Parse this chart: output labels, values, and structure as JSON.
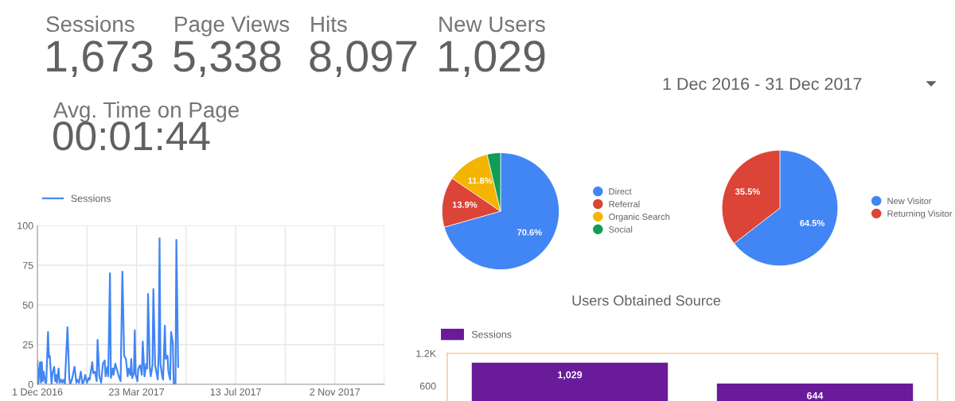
{
  "chart_data": [
    {
      "type": "other",
      "annotations": [
        "Sessions",
        "1,673",
        "Page Views",
        "5,338",
        "Hits",
        "8,097",
        "New Users",
        "1,029",
        "Avg. Time on Page",
        "00:01:44",
        "1 Dec 2016 - 31 Dec 2017"
      ]
    },
    {
      "type": "line",
      "legend": "top left",
      "grid": true,
      "ylim": [
        0,
        100
      ],
      "yticks": [
        0,
        25,
        50,
        75,
        100
      ],
      "xlim": [
        "2016-12-01",
        "2017-12-28"
      ],
      "xticks": [
        {
          "value": "2016-12-01",
          "label": "1 Dec 2016"
        },
        {
          "value": "2017-01-26",
          "label": null
        },
        {
          "value": "2017-03-23",
          "label": "23 Mar 2017"
        },
        {
          "value": "2017-05-18",
          "label": null
        },
        {
          "value": "2017-07-13",
          "label": "13 Jul 2017"
        },
        {
          "value": "2017-09-07",
          "label": null
        },
        {
          "value": "2017-11-02",
          "label": "2 Nov 2017"
        },
        {
          "value": "2017-12-28",
          "label": null
        }
      ],
      "series": [
        {
          "name": "Sessions",
          "color": "#4285f4",
          "x": [
            "2016-12-01",
            "2016-12-02",
            "2016-12-04",
            "2016-12-05",
            "2016-12-06",
            "2016-12-07",
            "2016-12-08",
            "2016-12-10",
            "2016-12-11",
            "2016-12-13",
            "2016-12-14",
            "2016-12-15",
            "2016-12-17",
            "2016-12-18",
            "2016-12-20",
            "2016-12-21",
            "2016-12-22",
            "2016-12-23",
            "2016-12-25",
            "2016-12-26",
            "2016-12-28",
            "2016-12-29",
            "2016-12-31",
            "2017-01-01",
            "2017-01-04",
            "2017-01-06",
            "2017-01-07",
            "2017-01-09",
            "2017-01-12",
            "2017-01-14",
            "2017-01-15",
            "2017-01-17",
            "2017-01-19",
            "2017-01-21",
            "2017-01-23",
            "2017-01-24",
            "2017-01-26",
            "2017-01-28",
            "2017-01-29",
            "2017-02-01",
            "2017-02-02",
            "2017-02-04",
            "2017-02-06",
            "2017-02-07",
            "2017-02-09",
            "2017-02-11",
            "2017-02-13",
            "2017-02-15",
            "2017-02-16",
            "2017-02-18",
            "2017-02-19",
            "2017-02-21",
            "2017-02-22",
            "2017-02-24",
            "2017-02-25",
            "2017-02-27",
            "2017-03-01",
            "2017-03-03",
            "2017-03-05",
            "2017-03-07",
            "2017-03-09",
            "2017-03-11",
            "2017-03-13",
            "2017-03-14",
            "2017-03-16",
            "2017-03-17",
            "2017-03-18",
            "2017-03-20",
            "2017-03-21",
            "2017-03-22",
            "2017-03-24",
            "2017-03-25",
            "2017-03-27",
            "2017-03-29",
            "2017-03-30",
            "2017-04-01",
            "2017-04-03",
            "2017-04-04",
            "2017-04-05",
            "2017-04-07",
            "2017-04-08",
            "2017-04-10",
            "2017-04-11",
            "2017-04-13",
            "2017-04-15",
            "2017-04-16",
            "2017-04-17",
            "2017-04-18",
            "2017-04-19",
            "2017-04-21",
            "2017-04-22",
            "2017-04-24",
            "2017-04-25",
            "2017-04-27",
            "2017-04-28",
            "2017-04-30",
            "2017-05-01",
            "2017-05-03",
            "2017-05-04",
            "2017-05-06",
            "2017-05-07",
            "2017-05-09"
          ],
          "values": [
            15,
            0,
            14,
            1,
            14,
            2,
            8,
            1,
            1,
            33,
            17,
            18,
            0,
            7,
            11,
            2,
            6,
            1,
            10,
            1,
            3,
            1,
            3,
            0,
            36,
            4,
            0,
            3,
            11,
            1,
            3,
            1,
            8,
            0,
            3,
            6,
            1,
            4,
            3,
            14,
            7,
            8,
            2,
            28,
            5,
            1,
            13,
            15,
            5,
            11,
            5,
            70,
            4,
            10,
            6,
            13,
            9,
            5,
            2,
            71,
            18,
            16,
            5,
            10,
            6,
            16,
            4,
            7,
            34,
            6,
            2,
            10,
            12,
            6,
            27,
            5,
            13,
            10,
            57,
            10,
            5,
            12,
            60,
            12,
            6,
            3,
            20,
            92,
            13,
            5,
            3,
            37,
            16,
            18,
            8,
            3,
            33,
            26,
            0,
            0,
            91,
            11
          ]
        }
      ]
    },
    {
      "type": "pie",
      "legend": "right",
      "categories": [
        "Direct",
        "Referral",
        "Organic Search",
        "Social"
      ],
      "values": [
        70.6,
        13.9,
        11.8,
        3.7
      ],
      "colors": [
        "#4285f4",
        "#db4437",
        "#f4b400",
        "#0f9d58"
      ],
      "value_labels": [
        "70.6%",
        "13.9%",
        "11.8%",
        null
      ]
    },
    {
      "type": "pie",
      "legend": "right",
      "categories": [
        "New Visitor",
        "Returning Visitor"
      ],
      "values": [
        64.5,
        35.5
      ],
      "colors": [
        "#4285f4",
        "#db4437"
      ],
      "value_labels": [
        "64.5%",
        "35.5%"
      ]
    },
    {
      "type": "bar",
      "title": "Users Obtained Source",
      "legend": "top left",
      "categories": [
        null,
        null
      ],
      "series": [
        {
          "name": "Sessions",
          "color": "#6a1b9a",
          "values": [
            1029,
            644
          ]
        }
      ],
      "value_labels": [
        "1,029",
        "644"
      ],
      "ylim": [
        0,
        1200
      ],
      "yticks": [
        {
          "value": 1200,
          "label": "1.2K"
        },
        600
      ],
      "grid": false
    }
  ]
}
